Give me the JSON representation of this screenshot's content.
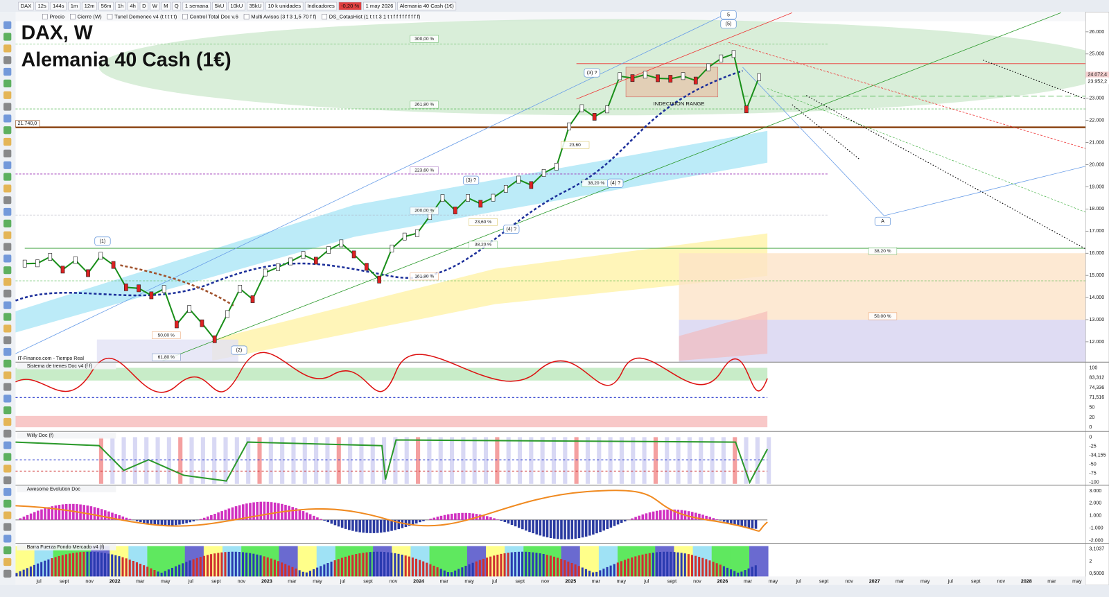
{
  "toolbar": {
    "items": [
      "DAX",
      "12s",
      "144s",
      "1m",
      "12m",
      "56m",
      "1h",
      "4h",
      "D",
      "W",
      "M",
      "Q",
      "1 semana",
      "5kU",
      "10kU",
      "35kU",
      "10 k unidades",
      "Indicadores",
      "-0,20 %",
      "1 may 2026",
      "Alemania 40 Cash (1€)"
    ],
    "layers": [
      "Precio",
      "Cierre (W)",
      "Tunel Domenec v4 (t t t t t)",
      "Control Total Doc v.6",
      "Multi Avisos (3 f 3 1,5 70 f f)",
      "DS_CotasHist (1 t t t 3 1 t t f f f f f f f f f)"
    ]
  },
  "main_chart": {
    "symbol": "DAX, W",
    "name": "Alemania 40 Cash (1€)",
    "source": "IT-Finance.com - Tiempo Real",
    "yticks": [
      {
        "value": 26000,
        "label": "26.000"
      },
      {
        "value": 25000,
        "label": "25.000"
      },
      {
        "value": 24000,
        "label": "24.000"
      },
      {
        "value": 23000,
        "label": "23.000"
      },
      {
        "value": 22000,
        "label": "22.000"
      },
      {
        "value": 21000,
        "label": "21.000"
      },
      {
        "value": 20000,
        "label": "20.000"
      },
      {
        "value": 19000,
        "label": "19.000"
      },
      {
        "value": 18000,
        "label": "18.000"
      },
      {
        "value": 17000,
        "label": "17.000"
      },
      {
        "value": 16000,
        "label": "16.000"
      },
      {
        "value": 15000,
        "label": "15.000"
      },
      {
        "value": 14000,
        "label": "14.000"
      },
      {
        "value": 13000,
        "label": "13.000"
      },
      {
        "value": 12000,
        "label": "12.000"
      }
    ],
    "price_markers": [
      {
        "value": 24072.4,
        "label": "24.072,4"
      },
      {
        "value": 23952.2,
        "label": "23.952,2"
      }
    ],
    "support_level": {
      "value": 21740,
      "label": "21.740,0"
    },
    "price_line": [
      15531,
      15544,
      15835,
      15260,
      15688,
      15100,
      15885,
      15471,
      14461,
      14415,
      14098,
      14388,
      12784,
      13484,
      12835,
      12114,
      13253,
      14397,
      13924,
      15128,
      15365,
      15629,
      15922,
      15664,
      16148,
      16447,
      15947,
      15387,
      14810,
      16215,
      16752,
      16904,
      17678,
      18492,
      17932,
      18498,
      18235,
      18508,
      18907,
      19325,
      19078,
      19626,
      19909,
      21732,
      22551,
      22163,
      22497,
      23997,
      23909,
      24065,
      23902,
      23881,
      24000,
      23800,
      24400,
      24800,
      25000,
      22500,
      23950
    ],
    "fibo_labels": [
      "300,00 %",
      "261,80 %",
      "223,60 %",
      "200,00 %",
      "161,80 %",
      "50,00 %",
      "61,80 %",
      "38,20 %",
      "23,60 %",
      "38,20 %",
      "23,60",
      "38,20 %",
      "50,00 %"
    ],
    "wave_labels": [
      "(1)",
      "(2)",
      "(3) ?",
      "(4) ?",
      "(3) ?",
      "(4) ?",
      "(5)",
      "5",
      "A"
    ],
    "range_label": "INDECISION RANGE"
  },
  "panels": [
    {
      "title": "Sistema de trenes Doc v4 (f f)",
      "scale": [
        "100",
        "83,312",
        "74,336",
        "71,516",
        "50",
        "20",
        "0"
      ]
    },
    {
      "title": "Willy Doc (f)",
      "scale": [
        "0",
        "-25",
        "-34,155",
        "-50",
        "-75",
        "-100"
      ]
    },
    {
      "title": "Awesome Evolution Doc",
      "scale": [
        "3.000",
        "2.000",
        "1.000",
        "-1.000",
        "-2.000"
      ]
    },
    {
      "title": "Barra Fuerza Fondo Mercado v4 (f)",
      "scale": [
        "3,1037",
        "2",
        "0,5000"
      ]
    }
  ],
  "time_axis": [
    "jul",
    "sept",
    "nov",
    "2022",
    "mar",
    "may",
    "jul",
    "sept",
    "nov",
    "2023",
    "mar",
    "may",
    "jul",
    "sept",
    "nov",
    "2024",
    "mar",
    "may",
    "jul",
    "sept",
    "nov",
    "2025",
    "mar",
    "may",
    "jul",
    "sept",
    "nov",
    "2026",
    "mar",
    "may",
    "jul",
    "sept",
    "nov",
    "2027",
    "mar",
    "may",
    "jul",
    "sept",
    "nov",
    "2028",
    "mar",
    "may"
  ]
}
